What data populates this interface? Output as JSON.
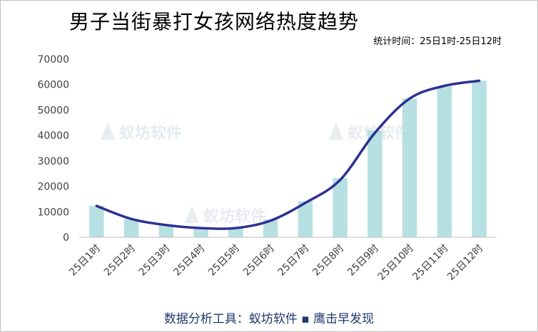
{
  "title": "男子当街暴打女孩网络热度趋势",
  "subtitle": "统计时间：25日1时-25日12时",
  "footer": "数据分析工具：蚁坊软件 ▪ 鹰击早发现",
  "watermark": "蚁坊软件",
  "colors": {
    "bar": "#b7e0e2",
    "line": "#2e3192",
    "axis": "#bfbfbf",
    "footer": "#1f3a6b"
  },
  "chart_data": {
    "type": "bar",
    "categories": [
      "25日1时",
      "25日2时",
      "25日3时",
      "25日4时",
      "25日5时",
      "25日6时",
      "25日7时",
      "25日8时",
      "25日9时",
      "25日10时",
      "25日11时",
      "25日12时"
    ],
    "values": [
      12300,
      7200,
      4800,
      3600,
      3500,
      7000,
      14200,
      23200,
      42000,
      54500,
      59500,
      61500
    ],
    "trend_line": [
      12300,
      7200,
      4800,
      3600,
      3600,
      6500,
      13500,
      22500,
      41000,
      54500,
      59500,
      61500
    ],
    "ylim": [
      0,
      70000
    ],
    "yticks": [
      0,
      10000,
      20000,
      30000,
      40000,
      50000,
      60000,
      70000
    ],
    "xlabel": "",
    "ylabel": "",
    "grid": false,
    "legend": "none"
  }
}
